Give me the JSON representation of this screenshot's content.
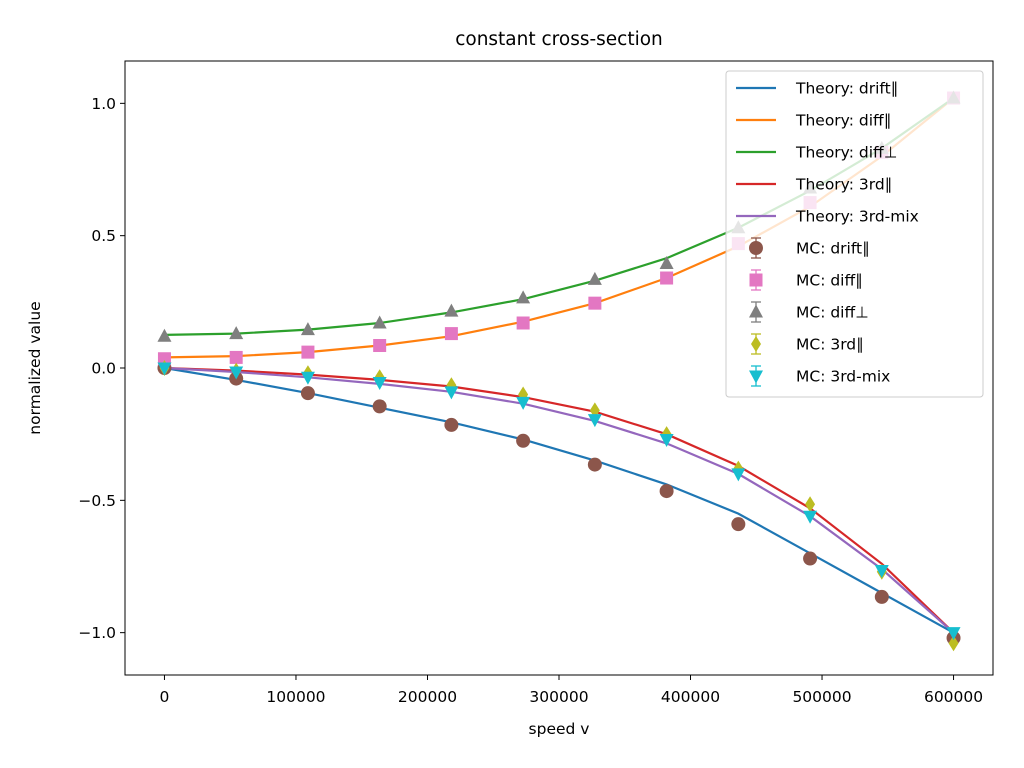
{
  "chart_data": {
    "type": "line",
    "title": "constant cross-section",
    "xlabel": "speed v",
    "ylabel": "normalized value",
    "xlim": [
      -30000,
      630000
    ],
    "ylim": [
      -1.16,
      1.16
    ],
    "x_ticks": [
      0,
      100000,
      200000,
      300000,
      400000,
      500000,
      600000
    ],
    "x_tick_labels": [
      "0",
      "100000",
      "200000",
      "300000",
      "400000",
      "500000",
      "600000"
    ],
    "y_ticks": [
      -1.0,
      -0.5,
      0.0,
      0.5,
      1.0
    ],
    "y_tick_labels": [
      "−1.0",
      "−0.5",
      "0.0",
      "0.5",
      "1.0"
    ],
    "grid": false,
    "legend_position": "top-right",
    "theory_x": [
      0,
      54545,
      109091,
      163636,
      218182,
      272727,
      327273,
      381818,
      436364,
      490909,
      545455,
      600000
    ],
    "theory": [
      {
        "name": "Theory: drift∥",
        "color": "#1f77b4",
        "values": [
          0.0,
          -0.045,
          -0.095,
          -0.15,
          -0.205,
          -0.27,
          -0.35,
          -0.44,
          -0.55,
          -0.7,
          -0.85,
          -1.0
        ]
      },
      {
        "name": "Theory: diff∥",
        "color": "#ff7f0e",
        "values": [
          0.04,
          0.045,
          0.06,
          0.085,
          0.12,
          0.175,
          0.245,
          0.34,
          0.46,
          0.61,
          0.8,
          1.02
        ]
      },
      {
        "name": "Theory: diff⊥",
        "color": "#2ca02c",
        "values": [
          0.125,
          0.13,
          0.145,
          0.17,
          0.21,
          0.26,
          0.33,
          0.415,
          0.53,
          0.67,
          0.83,
          1.02
        ]
      },
      {
        "name": "Theory: 3rd∥",
        "color": "#d62728",
        "values": [
          0.0,
          -0.01,
          -0.025,
          -0.045,
          -0.07,
          -0.11,
          -0.165,
          -0.25,
          -0.37,
          -0.53,
          -0.74,
          -1.0
        ]
      },
      {
        "name": "Theory: 3rd-mix",
        "color": "#9467bd",
        "values": [
          0.0,
          -0.015,
          -0.035,
          -0.06,
          -0.09,
          -0.135,
          -0.2,
          -0.285,
          -0.4,
          -0.56,
          -0.76,
          -1.0
        ]
      }
    ],
    "mc_x": [
      0,
      54545,
      109091,
      163636,
      218182,
      272727,
      327273,
      381818,
      436364,
      490909,
      545455,
      600000
    ],
    "mc": [
      {
        "name": "MC: drift∥",
        "color": "#8c564b",
        "marker": "circle",
        "values": [
          0.0,
          -0.04,
          -0.095,
          -0.145,
          -0.215,
          -0.275,
          -0.365,
          -0.465,
          -0.59,
          -0.72,
          -0.865,
          -1.02
        ]
      },
      {
        "name": "MC: diff∥",
        "color": "#e377c2",
        "marker": "square",
        "values": [
          0.035,
          0.04,
          0.06,
          0.085,
          0.13,
          0.17,
          0.245,
          0.34,
          0.47,
          0.625,
          0.815,
          1.02
        ]
      },
      {
        "name": "MC: diff⊥",
        "color": "#7f7f7f",
        "marker": "triangle-up",
        "values": [
          0.12,
          0.13,
          0.145,
          0.17,
          0.215,
          0.265,
          0.335,
          0.395,
          0.53,
          0.68,
          0.83,
          1.02
        ]
      },
      {
        "name": "MC: 3rd∥",
        "color": "#bcbd22",
        "marker": "diamond",
        "values": [
          0.0,
          -0.01,
          -0.02,
          -0.035,
          -0.065,
          -0.1,
          -0.16,
          -0.25,
          -0.38,
          -0.515,
          -0.77,
          -1.04
        ]
      },
      {
        "name": "MC: 3rd-mix",
        "color": "#17becf",
        "marker": "triangle-down",
        "values": [
          0.0,
          -0.015,
          -0.035,
          -0.055,
          -0.09,
          -0.13,
          -0.195,
          -0.27,
          -0.4,
          -0.56,
          -0.765,
          -1.0
        ]
      }
    ]
  }
}
